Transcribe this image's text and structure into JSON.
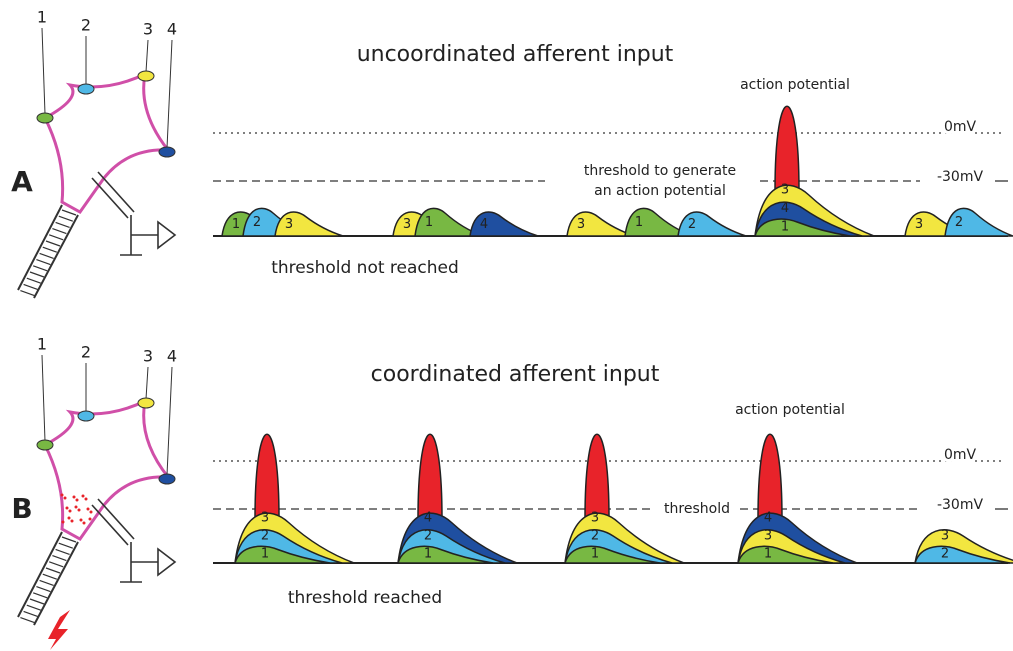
{
  "panels": [
    {
      "letter": "A",
      "title": "uncoordinated afferent input",
      "inputs": [
        "1",
        "2",
        "3",
        "4"
      ],
      "action_potential": "action potential",
      "zero": "0mV",
      "minus30": "-30mV",
      "threshold": [
        "threshold to generate",
        "an action potential"
      ],
      "caption": "threshold not reached",
      "groups": [
        [
          {
            "label": "1",
            "color": "#78b843"
          },
          {
            "label": "2",
            "color": "#4fb8e6"
          },
          {
            "label": "3",
            "color": "#f2e640"
          }
        ],
        [
          {
            "label": "3",
            "color": "#f2e640"
          },
          {
            "label": "1",
            "color": "#78b843"
          },
          {
            "label": "4",
            "color": "#1f4fa0"
          }
        ],
        [
          {
            "label": "3",
            "color": "#f2e640"
          },
          {
            "label": "1",
            "color": "#78b843"
          },
          {
            "label": "2",
            "color": "#4fb8e6"
          }
        ],
        [
          {
            "label": "1",
            "color": "#78b843"
          },
          {
            "label": "4",
            "color": "#1f4fa0"
          },
          {
            "label": "3",
            "color": "#f2e640"
          }
        ],
        [
          {
            "label": "3",
            "color": "#f2e640"
          },
          {
            "label": "2",
            "color": "#4fb8e6"
          }
        ]
      ]
    },
    {
      "letter": "B",
      "title": "coordinated afferent input",
      "inputs": [
        "1",
        "2",
        "3",
        "4"
      ],
      "action_potential": "action potential",
      "zero": "0mV",
      "minus30": "-30mV",
      "threshold": [
        "threshold"
      ],
      "caption": "threshold reached",
      "groups": [
        [
          {
            "label": "1",
            "color": "#78b843"
          },
          {
            "label": "2",
            "color": "#4fb8e6"
          },
          {
            "label": "3",
            "color": "#f2e640"
          }
        ],
        [
          {
            "label": "1",
            "color": "#78b843"
          },
          {
            "label": "2",
            "color": "#4fb8e6"
          },
          {
            "label": "4",
            "color": "#1f4fa0"
          }
        ],
        [
          {
            "label": "1",
            "color": "#78b843"
          },
          {
            "label": "2",
            "color": "#4fb8e6"
          },
          {
            "label": "3",
            "color": "#f2e640"
          }
        ],
        [
          {
            "label": "1",
            "color": "#78b843"
          },
          {
            "label": "3",
            "color": "#f2e640"
          },
          {
            "label": "4",
            "color": "#1f4fa0"
          }
        ],
        [
          {
            "label": "2",
            "color": "#4fb8e6"
          },
          {
            "label": "3",
            "color": "#f2e640"
          }
        ]
      ]
    }
  ]
}
